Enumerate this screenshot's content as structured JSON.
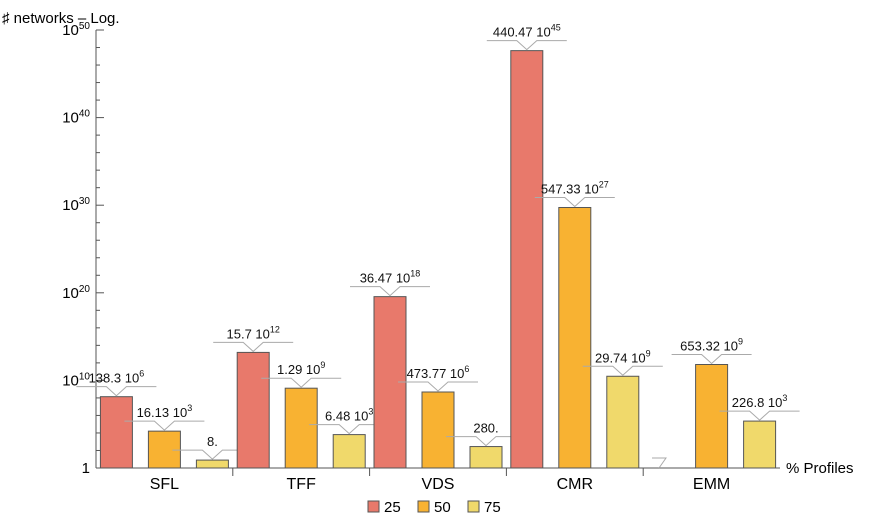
{
  "chart_data": {
    "type": "bar",
    "ylabel": "♯ networks – Log.",
    "xlabel": "% Profiles",
    "yscale": "log",
    "ylim_exponent": [
      0,
      50
    ],
    "y_ticks": [
      {
        "base": "1",
        "exp": ""
      },
      {
        "base": "10",
        "exp": "10"
      },
      {
        "base": "10",
        "exp": "20"
      },
      {
        "base": "10",
        "exp": "30"
      },
      {
        "base": "10",
        "exp": "40"
      },
      {
        "base": "10",
        "exp": "50"
      }
    ],
    "categories": [
      "SFL",
      "TFF",
      "VDS",
      "CMR",
      "EMM"
    ],
    "series": [
      {
        "name": "25",
        "color": "#e8796b",
        "log10_values": [
          8.141,
          13.196,
          19.562,
          47.644,
          0
        ],
        "labels": [
          {
            "base": "138.3 10",
            "exp": "6"
          },
          {
            "base": "15.7 10",
            "exp": "12"
          },
          {
            "base": "36.47 10",
            "exp": "18"
          },
          {
            "base": "440.47 10",
            "exp": "45"
          },
          {
            "base": "",
            "exp": ""
          }
        ]
      },
      {
        "name": "50",
        "color": "#f8b232",
        "log10_values": [
          4.208,
          9.111,
          8.676,
          29.738,
          11.815
        ],
        "labels": [
          {
            "base": "16.13 10",
            "exp": "3"
          },
          {
            "base": "1.29 10",
            "exp": "9"
          },
          {
            "base": "473.77 10",
            "exp": "6"
          },
          {
            "base": "547.33 10",
            "exp": "27"
          },
          {
            "base": "653.32 10",
            "exp": "9"
          }
        ]
      },
      {
        "name": "75",
        "color": "#f0d96b",
        "log10_values": [
          0.903,
          3.812,
          2.447,
          10.473,
          5.356
        ],
        "labels": [
          {
            "base": "8.",
            "exp": ""
          },
          {
            "base": "6.48 10",
            "exp": "3"
          },
          {
            "base": "280.",
            "exp": ""
          },
          {
            "base": "29.74 10",
            "exp": "9"
          },
          {
            "base": "226.8 10",
            "exp": "3"
          }
        ]
      }
    ],
    "legend_position": "bottom-center"
  }
}
